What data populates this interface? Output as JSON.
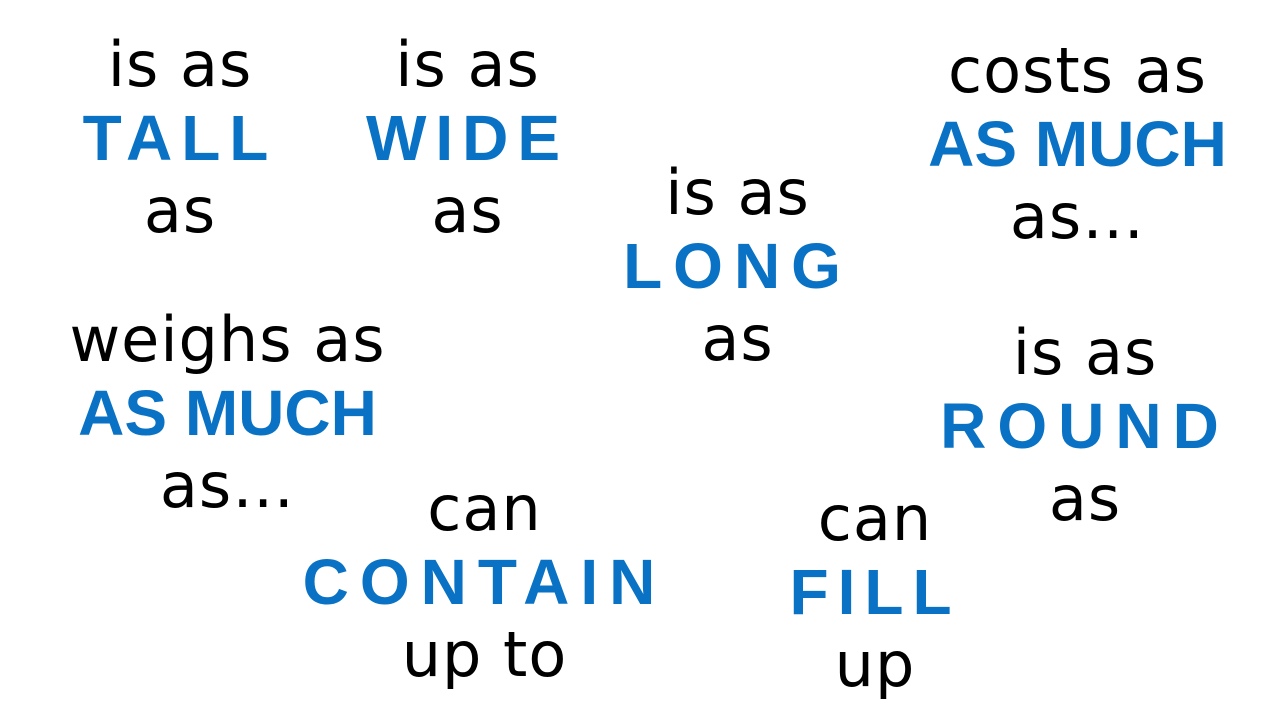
{
  "accent_color": "#0a72c4",
  "text_color": "#000000",
  "phrases": {
    "tall": {
      "before": "is as",
      "key": "TALL",
      "after": "as"
    },
    "wide": {
      "before": "is as",
      "key": "WIDE",
      "after": "as"
    },
    "long": {
      "before": "is as",
      "key": "LONG",
      "after": "as"
    },
    "costs": {
      "before": "costs as",
      "key": "AS MUCH",
      "after": "as…"
    },
    "weighs": {
      "before": "weighs as",
      "key": "AS MUCH",
      "after": "as…"
    },
    "round": {
      "before": "is as",
      "key": "ROUND",
      "after": "as"
    },
    "contain": {
      "before": "can",
      "key": "CONTAIN",
      "after": "up to"
    },
    "fill": {
      "before": "can",
      "key": "FILL",
      "after": "up"
    }
  }
}
